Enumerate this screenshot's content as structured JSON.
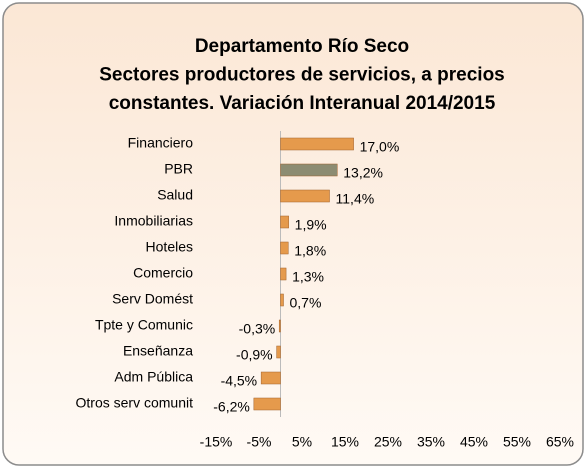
{
  "chart_data": {
    "type": "bar",
    "orientation": "horizontal",
    "title": [
      "Departamento Río Seco",
      "Sectores productores de servicios, a precios",
      "constantes. Variación Interanual 2014/2015"
    ],
    "categories": [
      "Financiero",
      "PBR",
      "Salud",
      "Inmobiliarias",
      "Hoteles",
      "Comercio",
      "Serv Domést",
      "Tpte y Comunic",
      "Enseñanza",
      "Adm Pública",
      "Otros serv comunit"
    ],
    "values": [
      17.0,
      13.2,
      11.4,
      1.9,
      1.8,
      1.3,
      0.7,
      -0.3,
      -0.9,
      -4.5,
      -6.2
    ],
    "value_labels": [
      "17,0%",
      "13,2%",
      "11,4%",
      "1,9%",
      "1,8%",
      "1,3%",
      "0,7%",
      "-0,3%",
      "-0,9%",
      "-4,5%",
      "-6,2%"
    ],
    "colors": [
      "#e59a4c",
      "#8c8c72",
      "#e59a4c",
      "#e59a4c",
      "#e59a4c",
      "#e59a4c",
      "#e59a4c",
      "#e59a4c",
      "#e59a4c",
      "#e59a4c",
      "#e59a4c"
    ],
    "xlim": [
      -15,
      65
    ],
    "xticks": [
      {
        "value": -15,
        "label": "-15%"
      },
      {
        "value": -5,
        "label": "-5%"
      },
      {
        "value": 5,
        "label": "5%"
      },
      {
        "value": 15,
        "label": "15%"
      },
      {
        "value": 25,
        "label": "25%"
      },
      {
        "value": 35,
        "label": "35%"
      },
      {
        "value": 45,
        "label": "45%"
      },
      {
        "value": 55,
        "label": "55%"
      },
      {
        "value": 65,
        "label": "65%"
      }
    ],
    "grid": false
  }
}
